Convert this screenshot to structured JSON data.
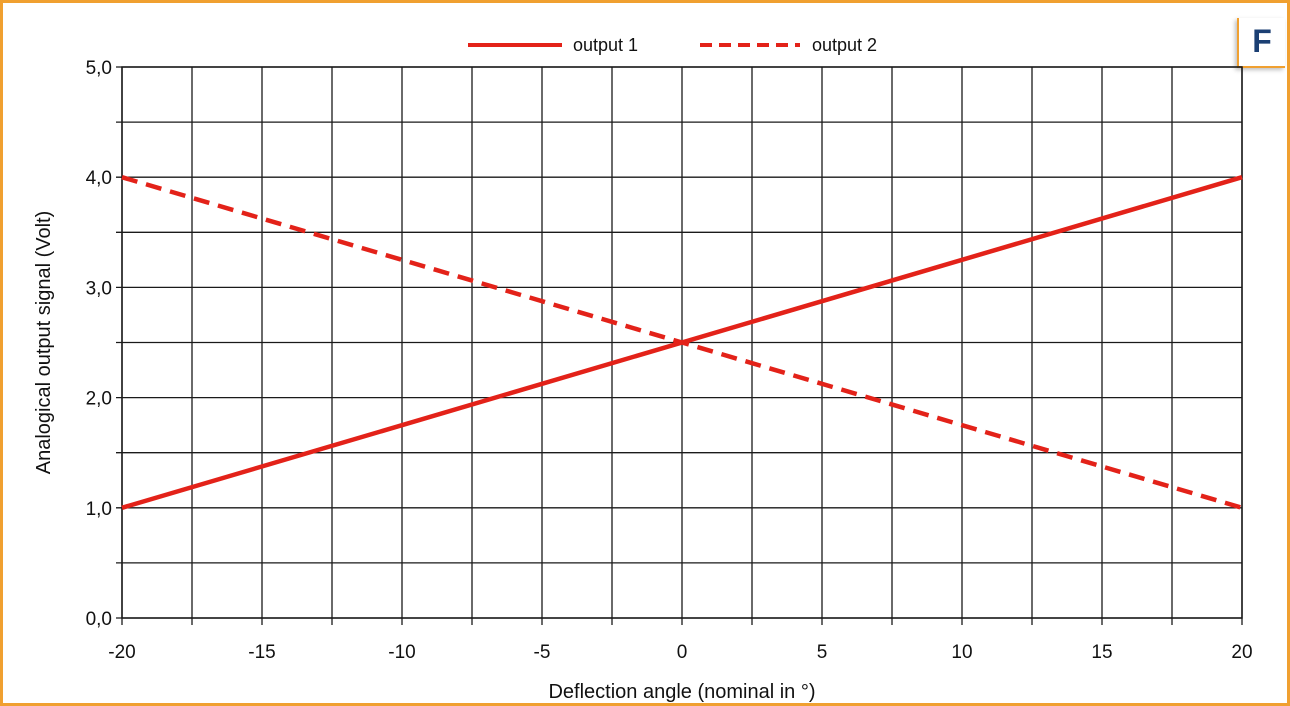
{
  "badge": "F",
  "colors": {
    "frame": "#f0a030",
    "badge_text": "#1b3f73",
    "series": "#e32219",
    "grid": "#1a1a1a"
  },
  "chart_data": {
    "type": "line",
    "title": "",
    "xlabel": "Deflection angle (nominal in °)",
    "ylabel": "Analogical output signal (Volt)",
    "xlim": [
      -20,
      20
    ],
    "ylim": [
      0,
      5
    ],
    "x_ticks": [
      -20,
      -15,
      -10,
      -5,
      0,
      5,
      10,
      15,
      20
    ],
    "x_tick_labels": [
      "-20",
      "-15",
      "-10",
      "-5",
      "0",
      "5",
      "10",
      "15",
      "20"
    ],
    "y_ticks": [
      0,
      1,
      2,
      3,
      4,
      5
    ],
    "y_tick_labels": [
      "0,0",
      "1,0",
      "2,0",
      "3,0",
      "4,0",
      "5,0"
    ],
    "grid": true,
    "legend_position": "top-center",
    "series": [
      {
        "name": "output 1",
        "style": "solid",
        "x": [
          -20,
          20
        ],
        "y": [
          1.0,
          4.0
        ]
      },
      {
        "name": "output 2",
        "style": "dashed",
        "x": [
          -20,
          20
        ],
        "y": [
          4.0,
          1.0
        ]
      }
    ]
  }
}
